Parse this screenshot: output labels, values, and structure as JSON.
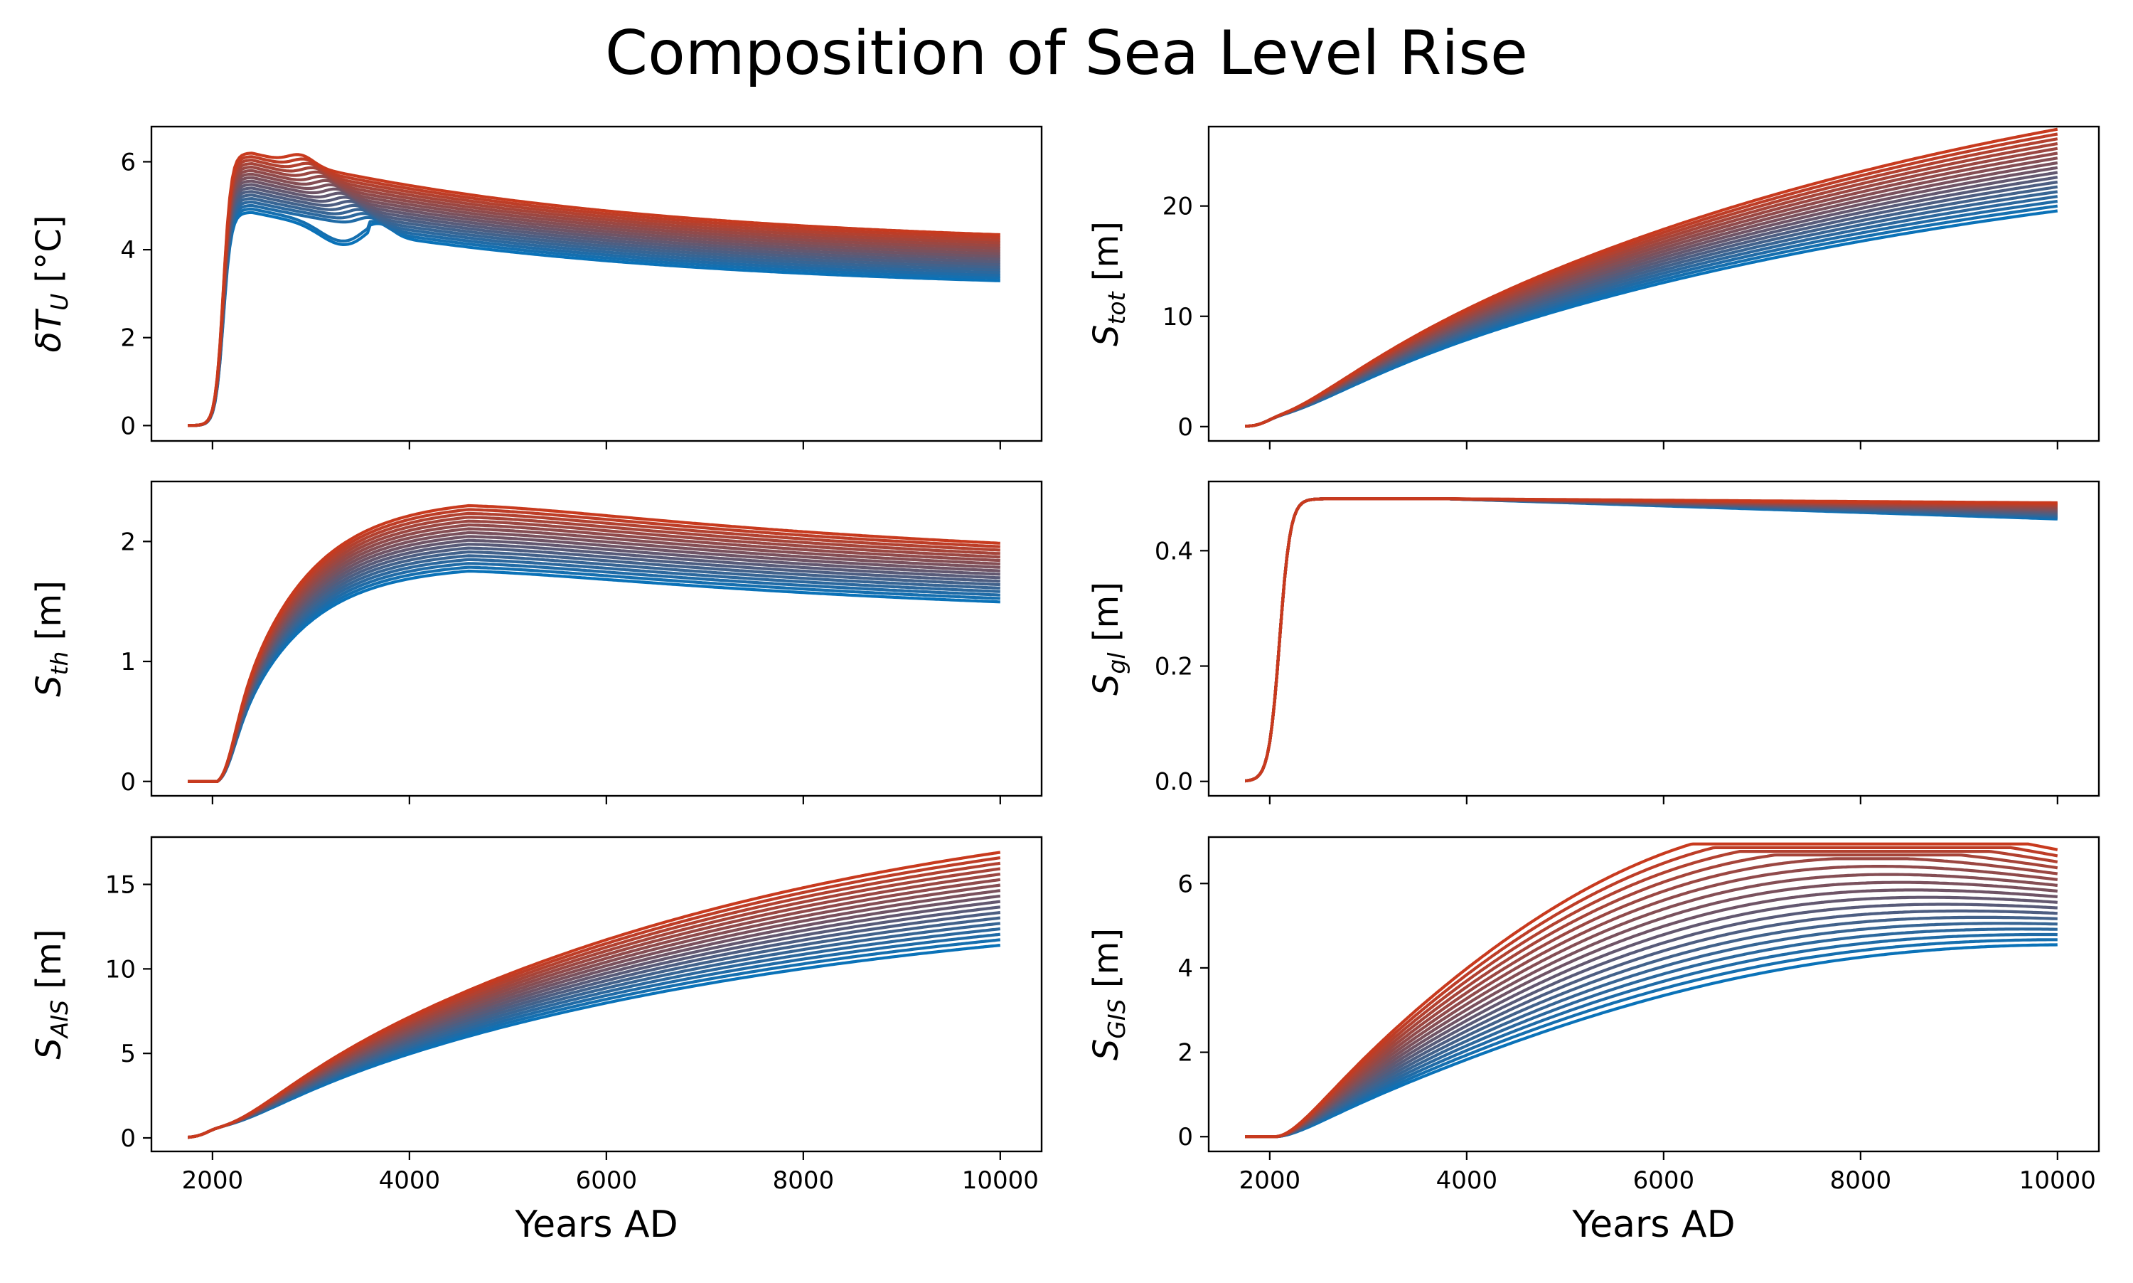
{
  "figure": {
    "title": "Composition of Sea Level Rise"
  },
  "chart_data": [
    {
      "id": "dTU",
      "type": "line",
      "ylabel": "δT_U [°C]",
      "ylabel_main": "δT",
      "ylabel_sub": "U",
      "ylabel_unit": " [°C]",
      "xlabel": "",
      "xlim": [
        1380,
        10420
      ],
      "ylim": [
        -0.35,
        6.8
      ],
      "yticks": [
        0,
        2,
        4,
        6
      ],
      "ytick_labels": [
        "0",
        "2",
        "4",
        "6"
      ],
      "xticks": [
        2000,
        4000,
        6000,
        8000,
        10000
      ],
      "xtick_labels": [],
      "shape": "temp",
      "ensemble_size": 18,
      "x_start": 1750,
      "x_end": 10000,
      "end_min": 3.05,
      "end_max": 4.05,
      "peak_min": 4.85,
      "peak_max": 6.2,
      "color_low": "#0a72b8",
      "color_high": "#c83a1e"
    },
    {
      "id": "Stot",
      "type": "line",
      "ylabel": "S_tot [m]",
      "ylabel_main": "S",
      "ylabel_sub": "tot",
      "ylabel_unit": " [m]",
      "xlabel": "",
      "xlim": [
        1380,
        10420
      ],
      "ylim": [
        -1.3,
        27.2
      ],
      "yticks": [
        0,
        10,
        20
      ],
      "ytick_labels": [
        "0",
        "10",
        "20"
      ],
      "xticks": [
        2000,
        4000,
        6000,
        8000,
        10000
      ],
      "xtick_labels": [],
      "shape": "total",
      "ensemble_size": 18,
      "x_start": 1750,
      "x_end": 10000,
      "end_min": 18.5,
      "end_max": 25.9,
      "color_low": "#0a72b8",
      "color_high": "#c83a1e"
    },
    {
      "id": "Sth",
      "type": "line",
      "ylabel": "S_th [m]",
      "ylabel_main": "S",
      "ylabel_sub": "th",
      "ylabel_unit": " [m]",
      "xlabel": "",
      "xlim": [
        1380,
        10420
      ],
      "ylim": [
        -0.12,
        2.5
      ],
      "yticks": [
        0,
        1,
        2
      ],
      "ytick_labels": [
        "0",
        "1",
        "2"
      ],
      "xticks": [
        2000,
        4000,
        6000,
        8000,
        10000
      ],
      "xtick_labels": [],
      "shape": "thermal",
      "ensemble_size": 18,
      "x_start": 1750,
      "x_end": 10000,
      "peak_min": 1.8,
      "peak_max": 2.36,
      "end_min": 1.33,
      "end_max": 1.78,
      "color_low": "#0a72b8",
      "color_high": "#c83a1e"
    },
    {
      "id": "Sgl",
      "type": "line",
      "ylabel": "S_gl [m]",
      "ylabel_main": "S",
      "ylabel_sub": "gl",
      "ylabel_unit": " [m]",
      "xlabel": "",
      "xlim": [
        1380,
        10420
      ],
      "ylim": [
        -0.025,
        0.52
      ],
      "yticks": [
        0.0,
        0.2,
        0.4
      ],
      "ytick_labels": [
        "0.0",
        "0.2",
        "0.4"
      ],
      "xticks": [
        2000,
        4000,
        6000,
        8000,
        10000
      ],
      "xtick_labels": [],
      "shape": "glacier",
      "ensemble_size": 18,
      "x_start": 1750,
      "x_end": 10000,
      "plateau": 0.49,
      "end_min": 0.455,
      "end_max": 0.483,
      "color_low": "#0a72b8",
      "color_high": "#c83a1e"
    },
    {
      "id": "SAIS",
      "type": "line",
      "ylabel": "S_AIS [m]",
      "ylabel_main": "S",
      "ylabel_sub": "AIS",
      "ylabel_unit": " [m]",
      "xlabel": "Years AD",
      "xlim": [
        1380,
        10420
      ],
      "ylim": [
        -0.8,
        17.8
      ],
      "yticks": [
        0,
        5,
        10,
        15
      ],
      "ytick_labels": [
        "0",
        "5",
        "10",
        "15"
      ],
      "xticks": [
        2000,
        4000,
        6000,
        8000,
        10000
      ],
      "xtick_labels": [
        "2000",
        "4000",
        "6000",
        "8000",
        "10000"
      ],
      "shape": "ais",
      "ensemble_size": 18,
      "x_start": 1750,
      "x_end": 10000,
      "end_min": 11.4,
      "end_max": 16.9,
      "color_low": "#0a72b8",
      "color_high": "#c83a1e"
    },
    {
      "id": "SGIS",
      "type": "line",
      "ylabel": "S_GIS [m]",
      "ylabel_main": "S",
      "ylabel_sub": "GIS",
      "ylabel_unit": " [m]",
      "xlabel": "Years AD",
      "xlim": [
        1380,
        10420
      ],
      "ylim": [
        -0.35,
        7.1
      ],
      "yticks": [
        0,
        2,
        4,
        6
      ],
      "ytick_labels": [
        "0",
        "2",
        "4",
        "6"
      ],
      "xticks": [
        2000,
        4000,
        6000,
        8000,
        10000
      ],
      "xtick_labels": [
        "2000",
        "4000",
        "6000",
        "8000",
        "10000"
      ],
      "shape": "gis",
      "ensemble_size": 18,
      "x_start": 1750,
      "x_end": 10000,
      "end_min": 5.35,
      "end_max": 6.8,
      "color_low": "#0a72b8",
      "color_high": "#c83a1e"
    }
  ]
}
